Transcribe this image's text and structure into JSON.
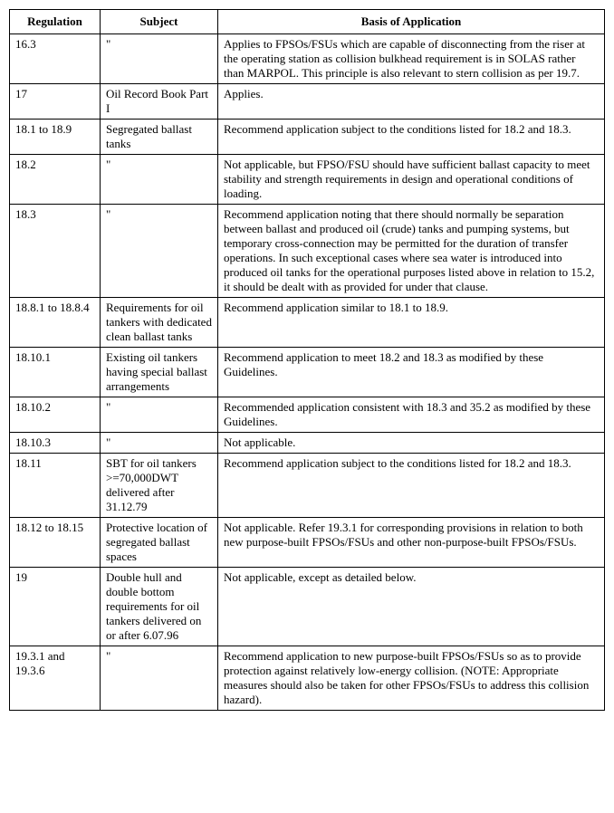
{
  "table": {
    "columns": [
      "Regulation",
      "Subject",
      "Basis of Application"
    ],
    "rows": [
      {
        "regulation": "16.3",
        "subject": "\"",
        "basis": "Applies to FPSOs/FSUs which are capable of disconnecting from the riser at the operating station as collision bulkhead requirement is in SOLAS rather than MARPOL.  This principle is also relevant to stern collision as per 19.7."
      },
      {
        "regulation": "17",
        "subject": "Oil Record Book Part I",
        "basis": "Applies."
      },
      {
        "regulation": "18.1 to 18.9",
        "subject": "Segregated ballast tanks",
        "basis": "Recommend application subject to the conditions listed for 18.2 and 18.3."
      },
      {
        "regulation": "18.2",
        "subject": "\"",
        "basis": "Not applicable, but FPSO/FSU should have sufficient ballast capacity to meet stability and strength requirements in design and operational conditions of loading."
      },
      {
        "regulation": "18.3",
        "subject": "\"",
        "basis": "Recommend application noting that there should normally be separation between ballast and produced oil (crude) tanks and pumping systems, but temporary cross-connection may be permitted for the duration of transfer operations.  In such exceptional cases where sea water is introduced into produced oil tanks for the operational purposes listed above in relation to 15.2, it should be dealt with as provided for under that clause."
      },
      {
        "regulation": "18.8.1 to 18.8.4",
        "subject": "Requirements for oil tankers with dedicated clean ballast tanks",
        "basis": "Recommend application similar to 18.1 to 18.9."
      },
      {
        "regulation": "18.10.1",
        "subject": "Existing oil tankers having special ballast arrangements",
        "basis": "Recommend application to meet 18.2 and 18.3 as modified by these Guidelines."
      },
      {
        "regulation": "18.10.2",
        "subject": "\"",
        "basis": "Recommended application consistent with 18.3 and 35.2 as modified by these Guidelines."
      },
      {
        "regulation": "18.10.3",
        "subject": "\"",
        "basis": "Not applicable."
      },
      {
        "regulation": "18.11",
        "subject": "SBT for oil tankers >=70,000DWT delivered after 31.12.79",
        "basis": "Recommend application subject to the conditions listed for 18.2 and 18.3."
      },
      {
        "regulation": "18.12 to 18.15",
        "subject": "Protective location of segregated ballast spaces",
        "basis": "Not applicable.  Refer 19.3.1 for corresponding provisions in relation to both new purpose-built FPSOs/FSUs and other non-purpose-built FPSOs/FSUs."
      },
      {
        "regulation": "19",
        "subject": "Double hull and double bottom requirements for oil tankers delivered on or after 6.07.96",
        "basis": "Not applicable, except as detailed below."
      },
      {
        "regulation": "19.3.1 and 19.3.6",
        "subject": "\"",
        "basis": "Recommend application to new purpose-built FPSOs/FSUs so as to provide protection against relatively low-energy collision.  (NOTE:  Appropriate measures should also be taken for other FPSOs/FSUs to address this collision hazard)."
      }
    ]
  }
}
